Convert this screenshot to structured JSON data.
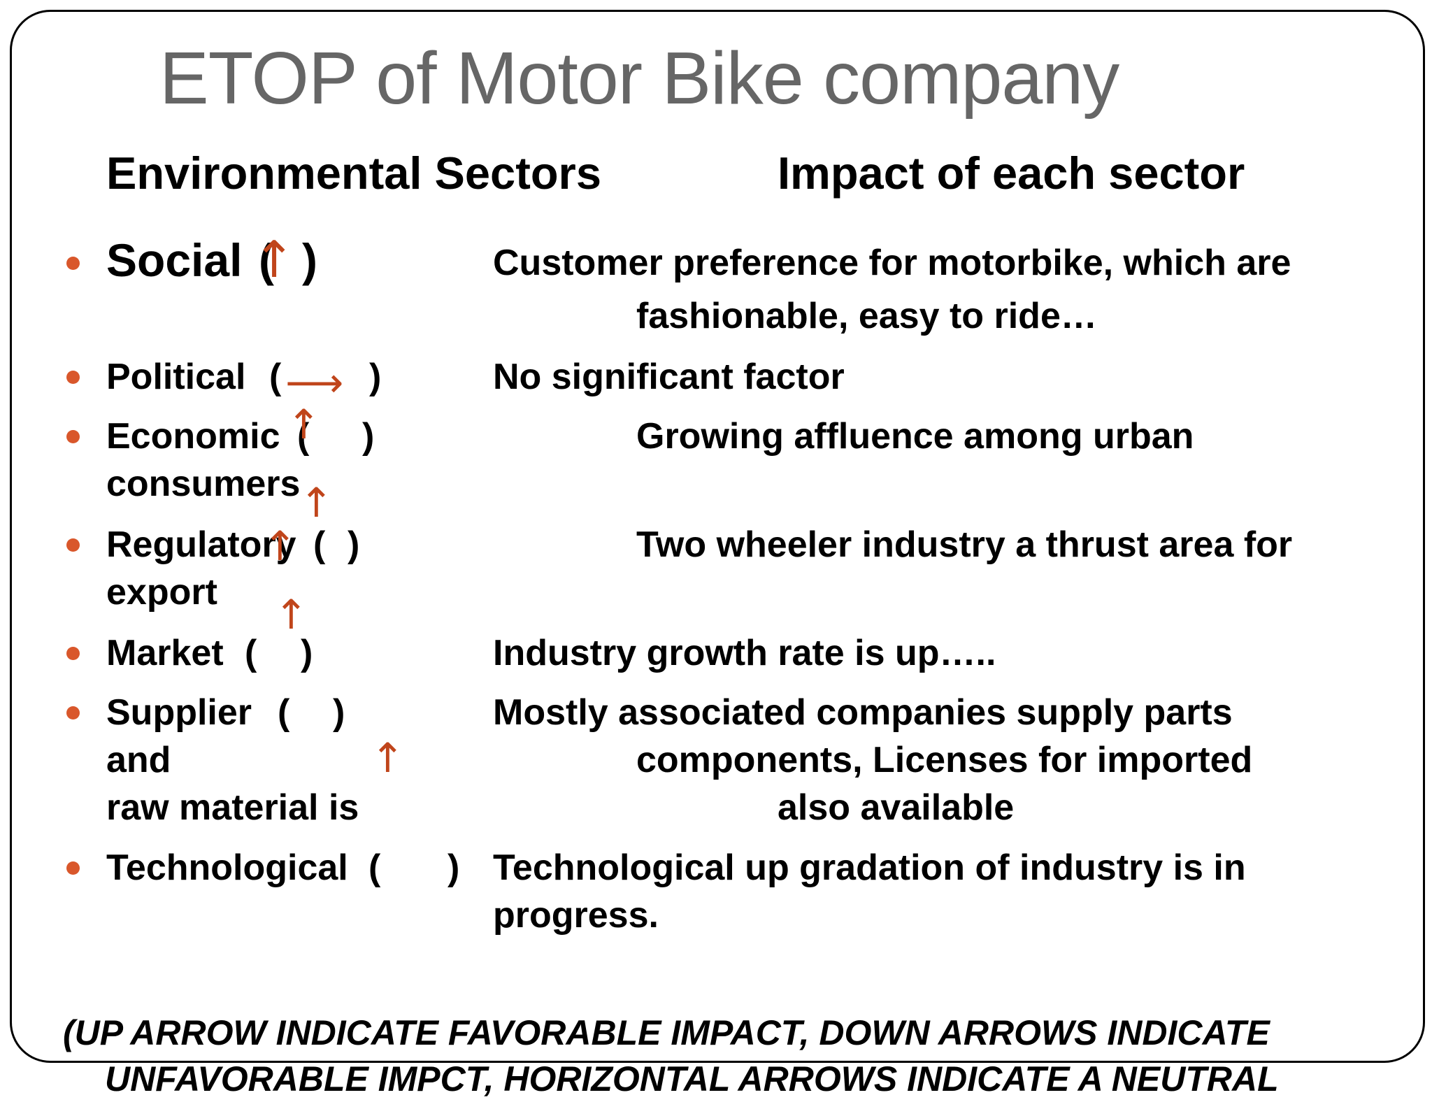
{
  "title": "ETOP of Motor Bike company",
  "headers": {
    "sectors": "Environmental Sectors",
    "impact": "Impact of each sector"
  },
  "rows": [
    {
      "sector": "Social",
      "open": "(",
      "close": ")",
      "impact_lines": [
        "Customer preference for motorbike, which are",
        "fashionable, easy to ride…"
      ]
    },
    {
      "sector": "Political",
      "open": "(",
      "close": ")",
      "impact_lines": [
        "No significant factor"
      ]
    },
    {
      "sector": "Economic",
      "open": "(",
      "close": ")",
      "extra": "consumers",
      "impact_lines": [
        "Growing affluence among urban"
      ]
    },
    {
      "sector": "Regulatory",
      "open": "(",
      "close": ")",
      "extra": "export",
      "impact_lines": [
        "Two wheeler industry a thrust area for"
      ]
    },
    {
      "sector": "Market",
      "open": "(",
      "close": ")",
      "impact_lines": [
        "Industry growth rate is up….."
      ]
    },
    {
      "sector": "Supplier",
      "open": "(",
      "close": ")",
      "extra_lines": [
        "and",
        "raw material is"
      ],
      "impact_lines": [
        "Mostly associated companies supply parts",
        "components, Licenses for imported",
        "also available"
      ]
    },
    {
      "sector": "Technological",
      "open": "(",
      "close": ")",
      "impact_lines": [
        "Technological up gradation of industry is in",
        "progress."
      ]
    }
  ],
  "arrows": {
    "up": "↑",
    "right": "⟶"
  },
  "footer_lines": [
    "(UP ARROW INDICATE FAVORABLE IMPACT, DOWN ARROWS INDICATE",
    "UNFAVORABLE IMPCT, HORIZONTAL ARROWS INDICATE A NEUTRAL"
  ],
  "colors": {
    "bullet": "#d9572b",
    "arrow": "#c0451b",
    "title": "#666666"
  }
}
